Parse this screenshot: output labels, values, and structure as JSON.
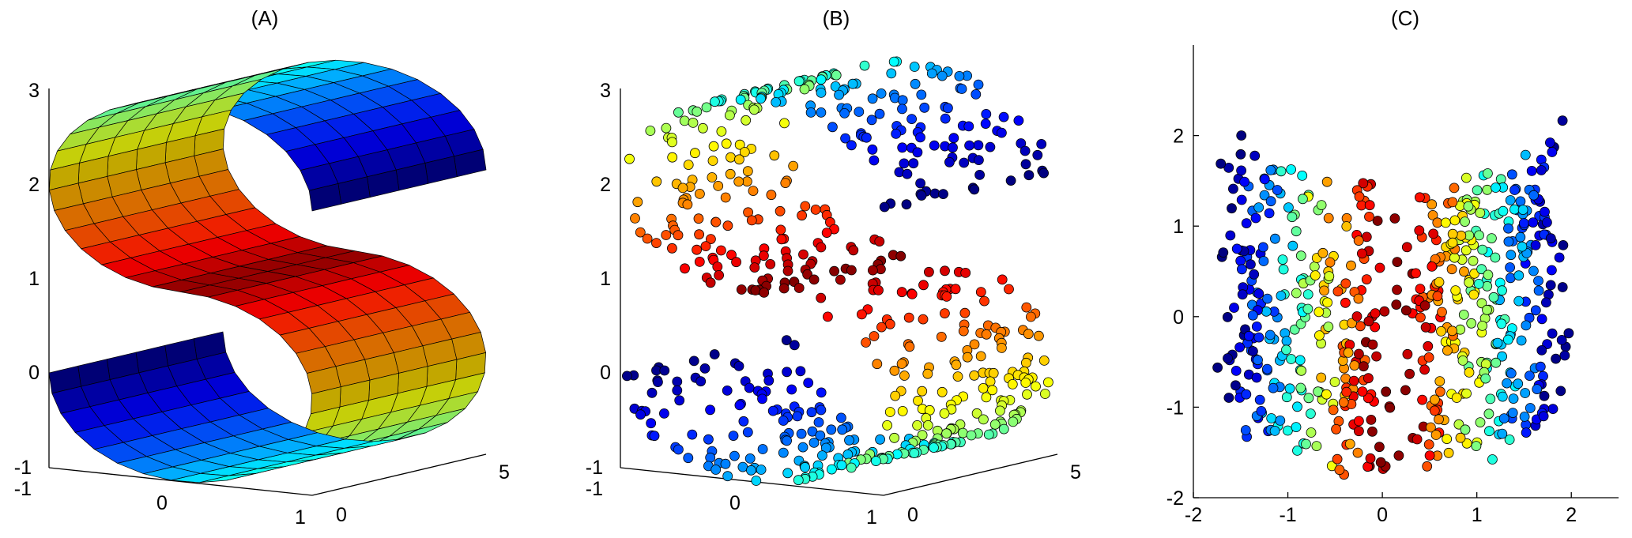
{
  "chart_data": [
    {
      "panel": "A",
      "type": "surface3d",
      "title": "(A)",
      "surface": "S-curve",
      "colormap": "jet",
      "color_by": "position along the S",
      "axes": {
        "x": {
          "range": [
            -1,
            1
          ],
          "ticks": [
            "-1",
            "0",
            "1"
          ]
        },
        "y": {
          "range": [
            0,
            5
          ],
          "ticks": [
            "0",
            "5"
          ]
        },
        "z": {
          "range": [
            -1,
            3
          ],
          "ticks": [
            "-1",
            "0",
            "1",
            "2",
            "3"
          ]
        }
      },
      "grid": false
    },
    {
      "panel": "B",
      "type": "scatter3d",
      "title": "(B)",
      "n_points": 600,
      "manifold": "S-curve",
      "colormap": "jet",
      "axes": {
        "x": {
          "range": [
            -1,
            1
          ],
          "ticks": [
            "-1",
            "0",
            "1"
          ]
        },
        "y": {
          "range": [
            0,
            5
          ],
          "ticks": [
            "0",
            "5"
          ]
        },
        "z": {
          "range": [
            -1,
            3
          ],
          "ticks": [
            "-1",
            "0",
            "1",
            "2",
            "3"
          ]
        }
      },
      "grid": false
    },
    {
      "panel": "C",
      "type": "scatter",
      "title": "(C)",
      "n_points": 600,
      "description_of_shape": "2-D embedding of the S-curve (U shape)",
      "colormap": "jet",
      "xlim": [
        -2,
        2.5
      ],
      "ylim": [
        -2,
        3
      ],
      "xticks": [
        "-2",
        "-1",
        "0",
        "1",
        "2"
      ],
      "yticks": [
        "-2",
        "-1",
        "0",
        "1",
        "2"
      ],
      "grid": false
    }
  ],
  "colors": {
    "jet_dark_blue": "#00008f",
    "jet_blue": "#0050ff",
    "jet_cyan": "#00ffff",
    "jet_yellow": "#ffff00",
    "jet_red": "#ff0000",
    "jet_dark_red": "#800000",
    "marker_edge": "#000000"
  }
}
